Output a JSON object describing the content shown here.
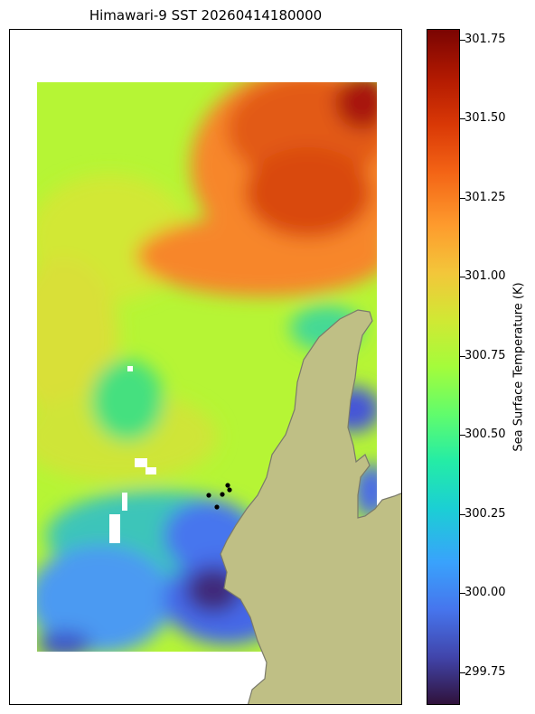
{
  "title": "Himawari-9 SST 20260414180000",
  "colorbar": {
    "label": "Sea Surface Temperature (K)",
    "min": 299.65,
    "max": 301.78,
    "colormap": "turbo",
    "ticks": [
      "299.75",
      "300.00",
      "300.25",
      "300.50",
      "300.75",
      "301.00",
      "301.25",
      "301.50",
      "301.75"
    ]
  },
  "map": {
    "land_color": "#bfbf85",
    "coast_color": "#7a7a6a",
    "marker_color": "#000000",
    "marker_count": 5
  }
}
